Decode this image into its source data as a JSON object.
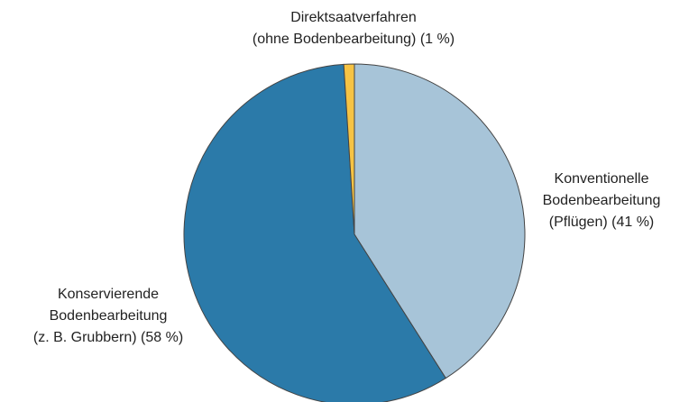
{
  "chart_data": {
    "type": "pie",
    "categories": [
      [
        "Konventionelle",
        "Bodenbearbeitung",
        "(Pflügen)"
      ],
      [
        "Konservierende",
        "Bodenbearbeitung",
        "(z. B. Grubbern)"
      ],
      [
        "Direktsaatverfahren",
        "(ohne Bodenbearbeitung)"
      ]
    ],
    "values": [
      41,
      58,
      1
    ],
    "value_labels": [
      "(41 %)",
      "(58 %)",
      "(1 %)"
    ],
    "colors": [
      "#a7c4d8",
      "#2b7aa9",
      "#f6c344"
    ]
  }
}
